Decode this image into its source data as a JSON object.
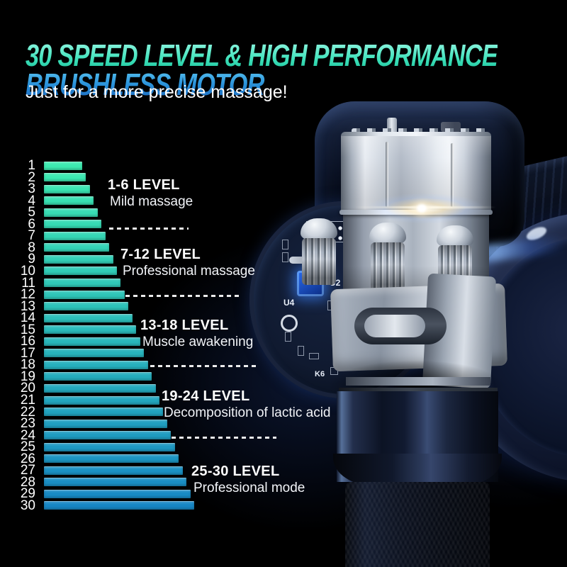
{
  "page": {
    "title_line1": "30 SPEED LEVEL & HIGH PERFORMANCE",
    "title_line2": "BRUSHLESS MOTOR",
    "subtitle": "Just for a more precise massage!"
  },
  "colors": {
    "background": "#000000",
    "glow_navy": "#1d3a7a",
    "title_teal_top": "#8FF5E0",
    "title_teal_bottom": "#23C9A2",
    "title_blue_top": "#4AB4EA",
    "title_blue_bottom": "#1B6AC0",
    "bar_start": "#3DEBB1",
    "bar_end": "#1787C5",
    "text": "#FFFFFF"
  },
  "chart_data": {
    "type": "bar",
    "orientation": "horizontal",
    "title": "30 speed levels",
    "xlabel": "",
    "ylabel": "",
    "grid": false,
    "legend": false,
    "categories": [
      "1",
      "2",
      "3",
      "4",
      "5",
      "6",
      "7",
      "8",
      "9",
      "10",
      "11",
      "12",
      "13",
      "14",
      "15",
      "16",
      "17",
      "18",
      "19",
      "20",
      "21",
      "22",
      "23",
      "24",
      "25",
      "26",
      "27",
      "28",
      "29",
      "30"
    ],
    "values": [
      1,
      2,
      3,
      4,
      5,
      6,
      7,
      8,
      9,
      10,
      11,
      12,
      13,
      14,
      15,
      16,
      17,
      18,
      19,
      20,
      21,
      22,
      23,
      24,
      25,
      26,
      27,
      28,
      29,
      30
    ],
    "groups": [
      {
        "range_label": "1-6 LEVEL",
        "description": "Mild massage"
      },
      {
        "range_label": "7-12 LEVEL",
        "description": "Professional massage"
      },
      {
        "range_label": "13-18 LEVEL",
        "description": "Muscle awakening"
      },
      {
        "range_label": "19-24 LEVEL",
        "description": "Decomposition of lactic acid"
      },
      {
        "range_label": "25-30 LEVEL",
        "description": "Professional mode"
      }
    ]
  },
  "product": {
    "pcb_labels": [
      "10",
      "U2",
      "U4",
      "K6"
    ]
  }
}
